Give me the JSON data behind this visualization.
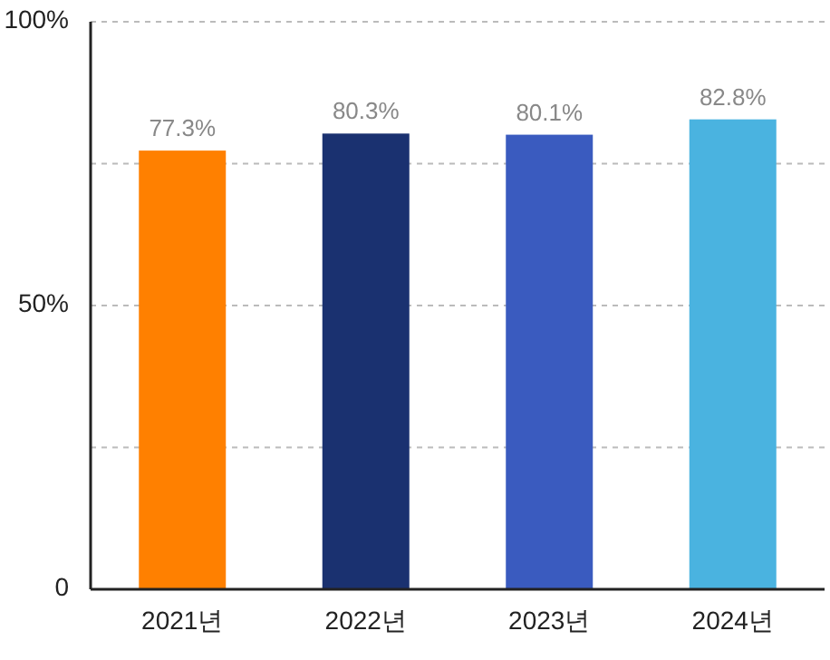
{
  "chart_data": {
    "type": "bar",
    "categories": [
      "2021년",
      "2022년",
      "2023년",
      "2024년"
    ],
    "values": [
      77.3,
      80.3,
      80.1,
      82.8
    ],
    "value_labels": [
      "77.3%",
      "80.3%",
      "80.1%",
      "82.8%"
    ],
    "colors": [
      "#ff8000",
      "#1a3170",
      "#3a5bbf",
      "#4ab3e0"
    ],
    "ylim": [
      0,
      100
    ],
    "yticks": [
      {
        "value": 0,
        "label": "0"
      },
      {
        "value": 25,
        "label": null
      },
      {
        "value": 50,
        "label": "50%"
      },
      {
        "value": 75,
        "label": null
      },
      {
        "value": 100,
        "label": "100%"
      }
    ],
    "grid": "y"
  }
}
